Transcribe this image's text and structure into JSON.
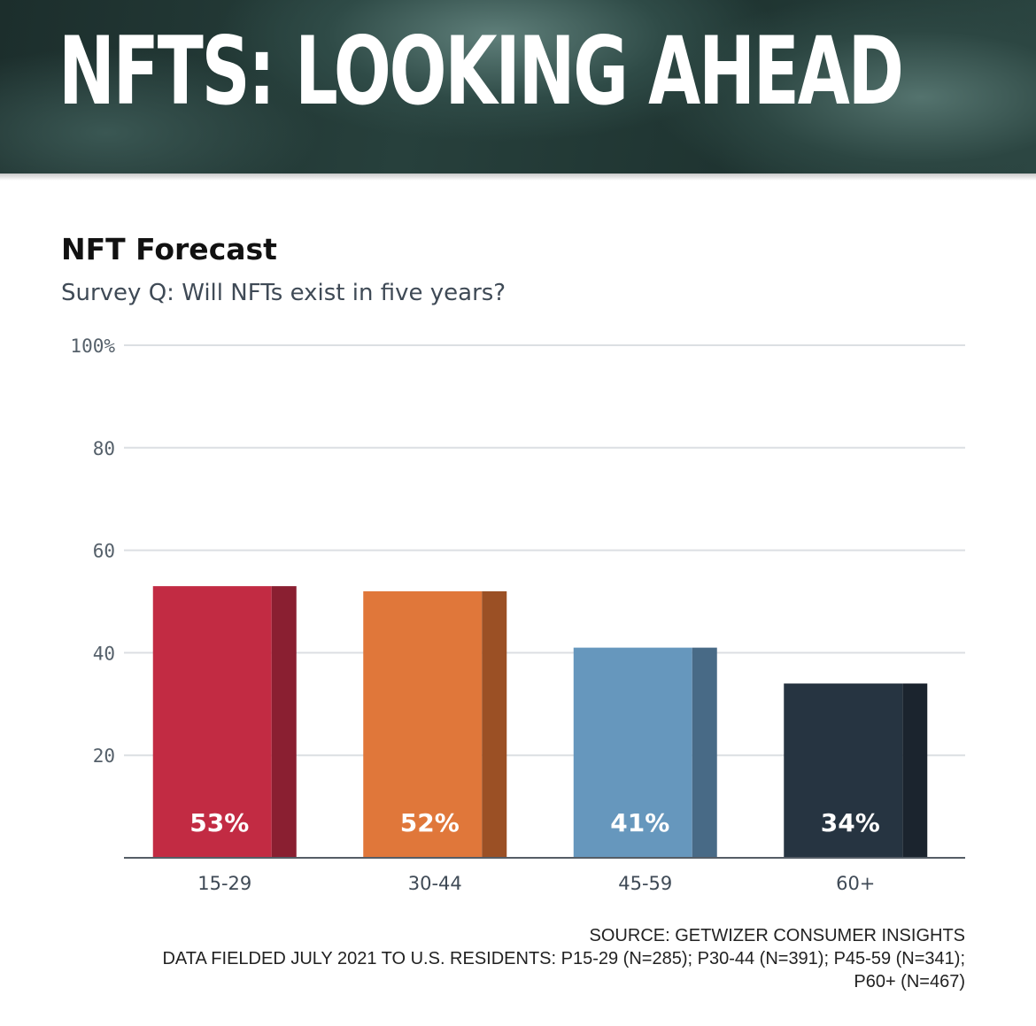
{
  "banner": {
    "title": "NFTS: LOOKING AHEAD"
  },
  "chart_data": {
    "type": "bar",
    "title": "NFT Forecast",
    "subtitle": "Survey Q: Will NFTs exist in five years?",
    "categories": [
      "15-29",
      "30-44",
      "45-59",
      "60+"
    ],
    "values": [
      53,
      52,
      41,
      34
    ],
    "value_labels": [
      "53%",
      "52%",
      "41%",
      "34%"
    ],
    "colors": [
      "#c22b43",
      "#e0773a",
      "#6697bd",
      "#263441"
    ],
    "side_colors": [
      "#8a1f31",
      "#9b5025",
      "#486a86",
      "#1b242e"
    ],
    "ylim": [
      0,
      100
    ],
    "yticks": [
      20,
      40,
      60,
      80,
      100
    ],
    "ytick_labels": [
      "20",
      "40",
      "60",
      "80",
      "100%"
    ],
    "grid": true,
    "xlabel": "",
    "ylabel": ""
  },
  "footer": {
    "source": "SOURCE: GETWIZER CONSUMER INSIGHTS",
    "fielded_line1": "DATA FIELDED JULY 2021 TO U.S. RESIDENTS: P15-29 (N=285); P30-44 (N=391); P45-59 (N=341);",
    "fielded_line2": "P60+ (N=467)"
  }
}
